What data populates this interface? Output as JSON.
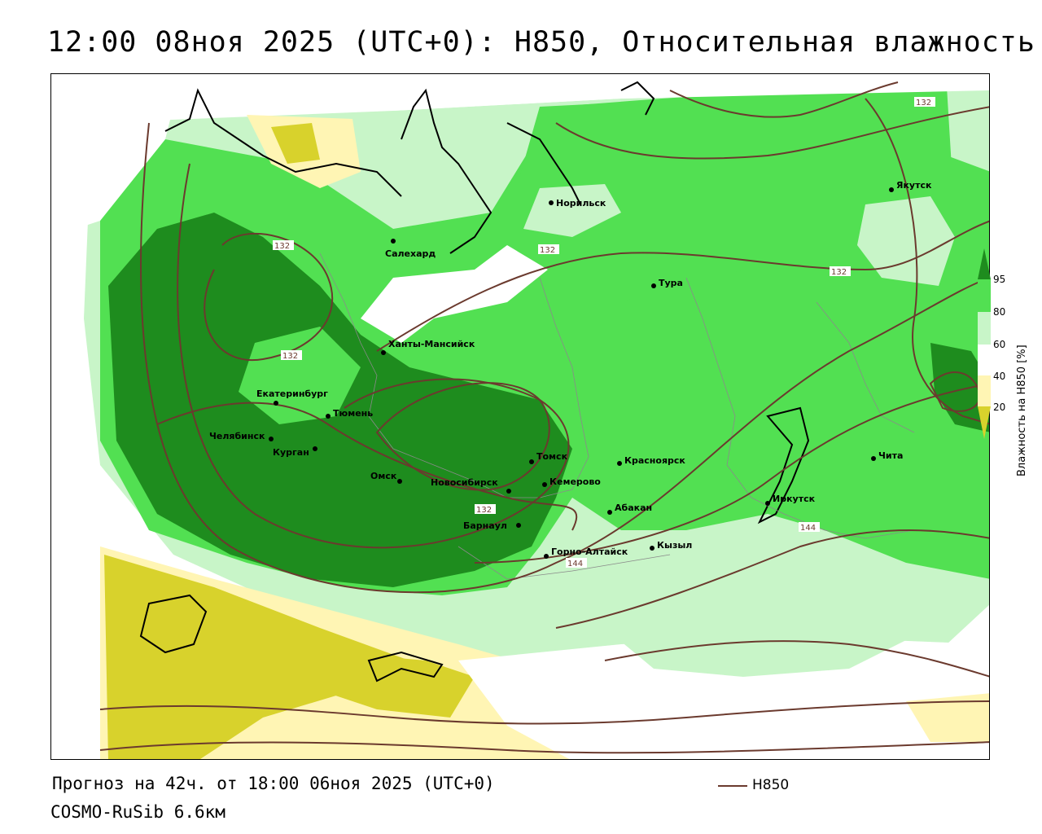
{
  "title": "12:00 08ноя 2025 (UTC+0): H850, Относительная влажность",
  "forecast_text": "Прогноз на 42ч. от 18:00 06ноя 2025 (UTC+0)",
  "model_text": "COSMO-RuSib 6.6км",
  "legend": {
    "line_label": "H850",
    "line_color": "#6b3a2e"
  },
  "colorbar": {
    "label": "Влажность на H850 [%]",
    "ticks": [
      "95",
      "80",
      "60",
      "40",
      "20"
    ],
    "colors": {
      "over95": "#1e8c1e",
      "80_95": "#52e052",
      "60_80": "#c8f5c8",
      "40_60": "#ffffff",
      "20_40": "#fff5b4",
      "under20": "#d8d22c"
    }
  },
  "cities": [
    {
      "name": "Норильск"
    },
    {
      "name": "Салехард"
    },
    {
      "name": "Якутск"
    },
    {
      "name": "Тура"
    },
    {
      "name": "Ханты-Мансийск"
    },
    {
      "name": "Екатеринбург"
    },
    {
      "name": "Тюмень"
    },
    {
      "name": "Челябинск"
    },
    {
      "name": "Курган"
    },
    {
      "name": "Омск"
    },
    {
      "name": "Новосибирск"
    },
    {
      "name": "Томск"
    },
    {
      "name": "Кемерово"
    },
    {
      "name": "Красноярск"
    },
    {
      "name": "Барнаул"
    },
    {
      "name": "Абакан"
    },
    {
      "name": "Горно-Алтайск"
    },
    {
      "name": "Кызыл"
    },
    {
      "name": "Иркутск"
    },
    {
      "name": "Чита"
    }
  ],
  "isoline_labels": [
    "132",
    "132",
    "132",
    "132",
    "132",
    "132",
    "144",
    "144"
  ]
}
